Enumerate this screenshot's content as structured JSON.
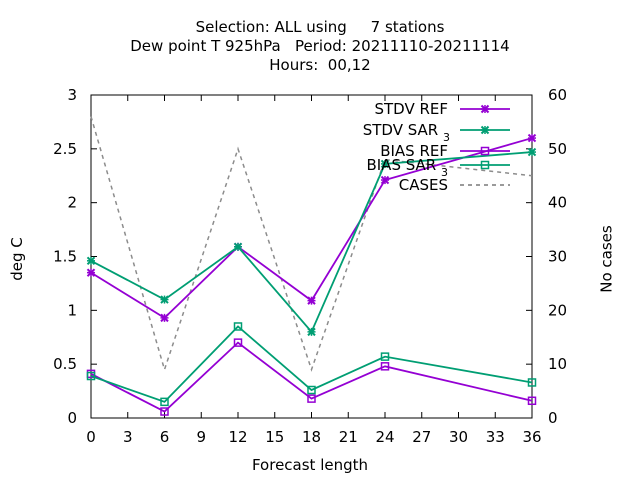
{
  "title": {
    "line1": "Selection: ALL using     7 stations",
    "line2": "Dew point T 925hPa   Period: 20211110-20211114",
    "line3": "Hours:  00,12"
  },
  "chart_data": {
    "type": "line",
    "xlabel": "Forecast length",
    "ylabel": "deg C",
    "y2label": "No cases",
    "xlim": [
      0,
      36
    ],
    "ylim": [
      0,
      3
    ],
    "y2lim": [
      0,
      60
    ],
    "xticks": [
      "0",
      "3",
      "6",
      "9",
      "12",
      "15",
      "18",
      "21",
      "24",
      "27",
      "30",
      "33",
      "36"
    ],
    "yticks": [
      "0",
      "0.5",
      "1",
      "1.5",
      "2",
      "2.5",
      "3"
    ],
    "y2ticks": [
      "0",
      "10",
      "20",
      "30",
      "40",
      "50",
      "60"
    ],
    "grid": false,
    "legend_position": "top-right",
    "x": [
      0,
      6,
      12,
      18,
      24,
      36
    ],
    "series": [
      {
        "name": "STDV REF",
        "axis": "y1",
        "color": "#9400d3",
        "marker": "x",
        "dash": "none",
        "values": [
          1.35,
          0.93,
          1.59,
          1.09,
          2.21,
          2.6
        ]
      },
      {
        "name": "STDV SAR_3",
        "axis": "y1",
        "color": "#009e73",
        "marker": "x",
        "dash": "none",
        "values": [
          1.46,
          1.1,
          1.59,
          0.8,
          2.36,
          2.47
        ]
      },
      {
        "name": "BIAS REF",
        "axis": "y1",
        "color": "#9400d3",
        "marker": "square",
        "dash": "none",
        "values": [
          0.41,
          0.06,
          0.7,
          0.18,
          0.48,
          0.16
        ]
      },
      {
        "name": "BIAS SAR_3",
        "axis": "y1",
        "color": "#009e73",
        "marker": "square",
        "dash": "none",
        "values": [
          0.39,
          0.15,
          0.85,
          0.26,
          0.57,
          0.33
        ]
      },
      {
        "name": "CASES",
        "axis": "y2",
        "color": "#8c8c8c",
        "marker": "none",
        "dash": "4,4",
        "values": [
          56,
          9,
          50,
          9,
          48,
          45
        ]
      }
    ]
  }
}
